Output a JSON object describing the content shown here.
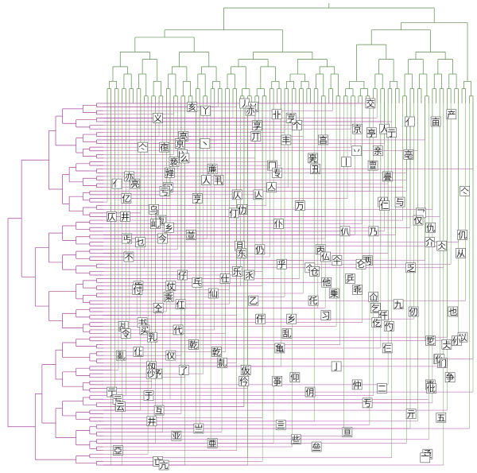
{
  "colors": {
    "top_tree": "#5b8a4a",
    "left_tree": "#a0449a",
    "grid_green": "#6fa05c",
    "grid_magenta": "#b24aa8",
    "glyph_text": "#222222",
    "background": "#ffffff"
  },
  "glyphs": [
    "丿",
    "乂",
    "丫",
    "卝",
    "义",
    "亻",
    "个",
    "人",
    "亍",
    "丌",
    "丰",
    "丶",
    "亽",
    "丷",
    "兦",
    "么",
    "丨",
    "冂",
    "丑",
    "专",
    "亦",
    "丮",
    "亮",
    "冗",
    "亏",
    "仄",
    "亨",
    "与",
    "万",
    "乌",
    "乛",
    "井",
    "亙",
    "乢",
    "乡",
    "乃",
    "並",
    "丐",
    "乜",
    "且",
    "丙",
    "东",
    "不",
    "两",
    "乎",
    "乏",
    "乐",
    "乑",
    "乒",
    "乓",
    "乕",
    "乖",
    "乗",
    "乘",
    "乙",
    "九",
    "乞",
    "也",
    "习",
    "乡",
    "书",
    "乩",
    "买",
    "乱",
    "乳",
    "乴",
    "乾",
    "亀",
    "亁",
    "亂",
    "亃",
    "亄",
    "亅",
    "了",
    "予",
    "争",
    "亊",
    "事",
    "二",
    "亍",
    "于",
    "亏",
    "亐",
    "云",
    "互",
    "亓",
    "五",
    "井",
    "亖",
    "亗",
    "亘",
    "亚",
    "些",
    "亜",
    "亝",
    "亞",
    "亟",
    "亠",
    "亡",
    "亢",
    "交",
    "亥",
    "亦",
    "产",
    "亨",
    "亩",
    "享",
    "京",
    "亭",
    "亮",
    "亯",
    "亰",
    "亱",
    "亲",
    "亳",
    "亴",
    "亵",
    "亶",
    "亷",
    "亸",
    "亹",
    "人",
    "亻",
    "亼",
    "亽",
    "亾",
    "亿",
    "什",
    "仁",
    "仂",
    "仃",
    "仄",
    "仅",
    "仆",
    "仇",
    "仈",
    "仉",
    "今",
    "介",
    "仌",
    "仍",
    "从",
    "仏",
    "仐",
    "仑",
    "仒",
    "仓",
    "仔",
    "仕",
    "他",
    "仗",
    "付",
    "仙",
    "仚",
    "仛",
    "仜",
    "仝",
    "仞",
    "仟",
    "仠",
    "仡",
    "仢",
    "代",
    "令",
    "以",
    "仦",
    "仧",
    "仨",
    "仩",
    "仪",
    "仫",
    "们",
    "仭",
    "仮",
    "仯",
    "仰",
    "仱",
    "仲",
    "仳",
    "仴"
  ]
}
